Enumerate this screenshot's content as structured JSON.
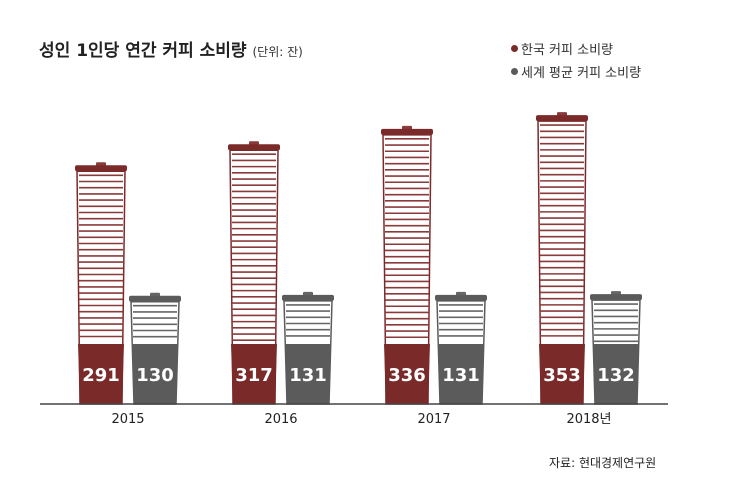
{
  "title": "성인 1인당 연간 커피 소비량",
  "unit_note": "(단위: 잔)",
  "source": "자료: 현대경제연구원",
  "colors": {
    "korea": "#7b2a2a",
    "world": "#5b5b5b",
    "stripe_line_korea": "#8b3a3a",
    "stripe_line_world": "#666666"
  },
  "chart_data": {
    "type": "bar",
    "categories": [
      "2015",
      "2016",
      "2017",
      "2018년"
    ],
    "series": [
      {
        "name": "한국 커피 소비량",
        "values": [
          291,
          317,
          336,
          353
        ]
      },
      {
        "name": "세계 평균 커피 소비량",
        "values": [
          130,
          131,
          131,
          132
        ]
      }
    ],
    "title": "성인 1인당 연간 커피 소비량",
    "legend_position": "top-right",
    "grid": false
  }
}
